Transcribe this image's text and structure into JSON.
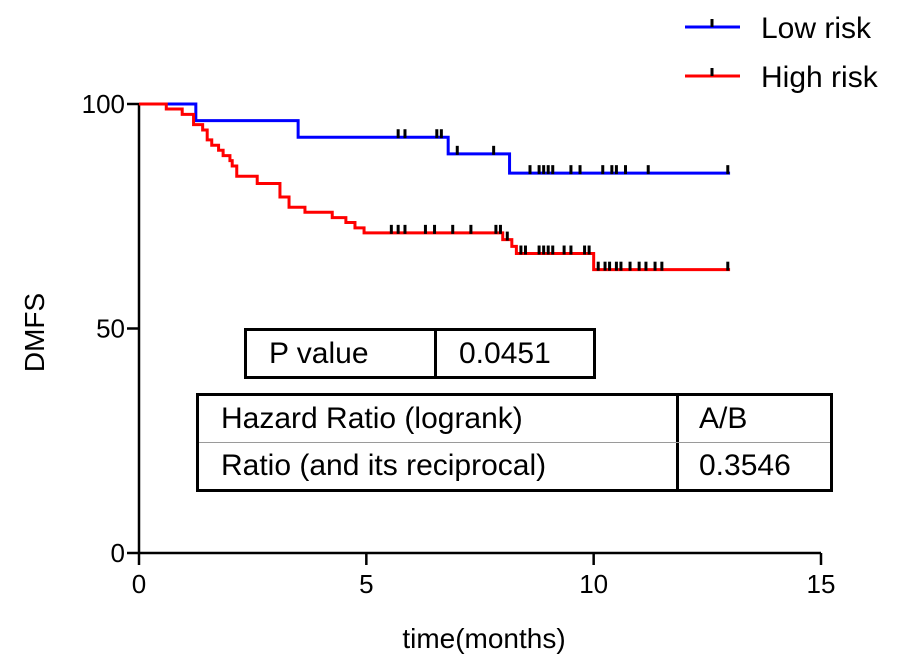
{
  "chart_data": {
    "type": "line",
    "subtype": "kaplan-meier",
    "title": "",
    "xlabel": "time(months)",
    "ylabel": "DMFS",
    "xlim": [
      0,
      15
    ],
    "ylim": [
      0,
      100
    ],
    "xticks": [
      0,
      5,
      10,
      15
    ],
    "yticks": [
      0,
      50,
      100
    ],
    "grid": false,
    "legend_position": "top-right",
    "series": [
      {
        "name": "Low risk",
        "color": "#0000ff",
        "steps": [
          [
            0,
            100
          ],
          [
            1.25,
            96.3
          ],
          [
            3.5,
            92.6
          ],
          [
            6.8,
            88.9
          ],
          [
            8.15,
            84.6
          ],
          [
            13.0,
            84.6
          ]
        ],
        "censored": [
          [
            5.7,
            92.6
          ],
          [
            5.85,
            92.6
          ],
          [
            6.55,
            92.6
          ],
          [
            6.65,
            92.6
          ],
          [
            7.0,
            88.9
          ],
          [
            7.8,
            88.9
          ],
          [
            8.6,
            84.6
          ],
          [
            8.8,
            84.6
          ],
          [
            8.9,
            84.6
          ],
          [
            9.0,
            84.6
          ],
          [
            9.1,
            84.6
          ],
          [
            9.5,
            84.6
          ],
          [
            9.7,
            84.6
          ],
          [
            10.2,
            84.6
          ],
          [
            10.4,
            84.6
          ],
          [
            10.5,
            84.6
          ],
          [
            10.7,
            84.6
          ],
          [
            11.2,
            84.6
          ],
          [
            12.95,
            84.6
          ]
        ]
      },
      {
        "name": "High risk",
        "color": "#ff0000",
        "steps": [
          [
            0,
            100
          ],
          [
            0.6,
            98.9
          ],
          [
            0.95,
            97.7
          ],
          [
            1.2,
            95.4
          ],
          [
            1.4,
            94.2
          ],
          [
            1.5,
            92.0
          ],
          [
            1.6,
            90.8
          ],
          [
            1.75,
            89.7
          ],
          [
            1.85,
            88.5
          ],
          [
            2.0,
            87.4
          ],
          [
            2.05,
            86.2
          ],
          [
            2.15,
            83.9
          ],
          [
            2.6,
            82.3
          ],
          [
            3.1,
            79.3
          ],
          [
            3.3,
            77.0
          ],
          [
            3.65,
            75.9
          ],
          [
            4.25,
            74.7
          ],
          [
            4.55,
            73.6
          ],
          [
            4.75,
            72.4
          ],
          [
            4.95,
            71.3
          ],
          [
            8.0,
            69.8
          ],
          [
            8.2,
            68.3
          ],
          [
            8.3,
            66.7
          ],
          [
            10.0,
            63.1
          ],
          [
            13.0,
            63.1
          ]
        ],
        "censored": [
          [
            5.55,
            71.3
          ],
          [
            5.7,
            71.3
          ],
          [
            5.85,
            71.3
          ],
          [
            6.3,
            71.3
          ],
          [
            6.5,
            71.3
          ],
          [
            6.9,
            71.3
          ],
          [
            7.3,
            71.3
          ],
          [
            7.85,
            71.3
          ],
          [
            7.95,
            71.3
          ],
          [
            8.1,
            69.8
          ],
          [
            8.4,
            66.7
          ],
          [
            8.5,
            66.7
          ],
          [
            8.8,
            66.7
          ],
          [
            8.9,
            66.7
          ],
          [
            9.0,
            66.7
          ],
          [
            9.1,
            66.7
          ],
          [
            9.35,
            66.7
          ],
          [
            9.5,
            66.7
          ],
          [
            9.8,
            66.7
          ],
          [
            9.9,
            66.7
          ],
          [
            10.1,
            63.1
          ],
          [
            10.25,
            63.1
          ],
          [
            10.35,
            63.1
          ],
          [
            10.5,
            63.1
          ],
          [
            10.6,
            63.1
          ],
          [
            10.8,
            63.1
          ],
          [
            11.0,
            63.1
          ],
          [
            11.15,
            63.1
          ],
          [
            11.35,
            63.1
          ],
          [
            11.5,
            63.1
          ],
          [
            12.95,
            63.1
          ]
        ]
      }
    ]
  },
  "stats": {
    "pvalue": {
      "label": "P value",
      "value": "0.0451"
    },
    "hazard_ratio": {
      "label": "Hazard Ratio (logrank)",
      "value": "A/B"
    },
    "ratio": {
      "label": "Ratio (and its reciprocal)",
      "value": "0.3546"
    }
  }
}
